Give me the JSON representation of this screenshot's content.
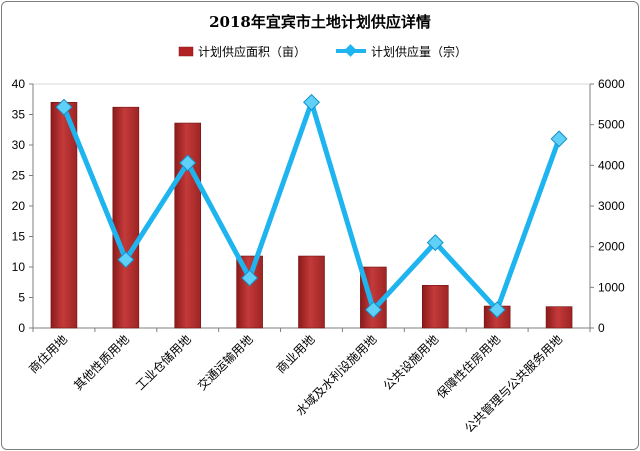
{
  "chart_data": {
    "type": "bar",
    "title": "2018年宜宾市土地计划供应详情",
    "categories": [
      "商住用地",
      "其他性质用地",
      "工业仓储用地",
      "交通运输用地",
      "商业用地",
      "水域及水利设施用地",
      "公共设施用地",
      "保障性住房用地",
      "公共管理与公共服务用地"
    ],
    "series": [
      {
        "name": "计划供应面积（亩）",
        "type": "bar",
        "axis": "left",
        "color": "#b22222",
        "values": [
          37,
          36.2,
          33.6,
          11.8,
          11.8,
          10,
          7,
          3.6,
          3.5
        ]
      },
      {
        "name": "计划供应量（宗）",
        "type": "line",
        "axis": "right",
        "color": "#1eb4f0",
        "values": [
          5430,
          1680,
          4060,
          1230,
          5550,
          450,
          2100,
          450,
          4650
        ]
      }
    ],
    "y_left": {
      "min": 0,
      "max": 40,
      "ticks": [
        0,
        5,
        10,
        15,
        20,
        25,
        30,
        35,
        40
      ]
    },
    "y_right": {
      "min": 0,
      "max": 6000,
      "ticks": [
        0,
        1000,
        2000,
        3000,
        4000,
        5000,
        6000
      ]
    },
    "legend_position": "top"
  }
}
